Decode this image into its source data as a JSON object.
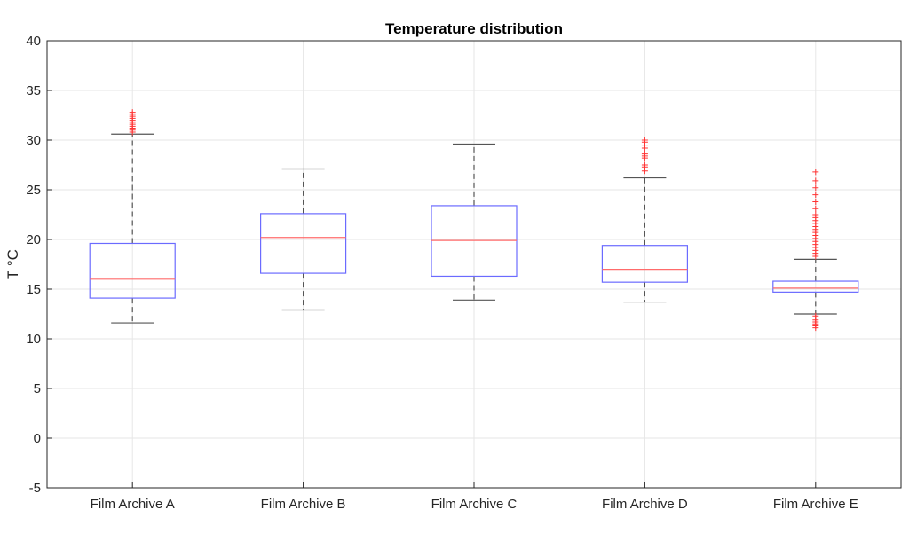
{
  "chart_data": {
    "type": "box",
    "title": "Temperature distribution",
    "xlabel": "",
    "ylabel": "T °C",
    "ylim": [
      -5,
      40
    ],
    "yticks": [
      -5,
      0,
      5,
      10,
      15,
      20,
      25,
      30,
      35,
      40
    ],
    "grid": true,
    "colors": {
      "box": "#6b6bff",
      "median": "#ff6b6b",
      "whisker": "#555555",
      "outlier": "#ff3333",
      "grid": "#e6e6e6",
      "axis": "#262626"
    },
    "categories": [
      "Film Archive A",
      "Film Archive B",
      "Film Archive C",
      "Film Archive D",
      "Film Archive E"
    ],
    "boxes": [
      {
        "label": "Film Archive A",
        "whisker_low": 11.6,
        "q1": 14.1,
        "median": 16.0,
        "q3": 19.6,
        "whisker_high": 30.6,
        "outliers": [
          30.8,
          31.0,
          31.2,
          31.4,
          31.6,
          31.8,
          32.0,
          32.2,
          32.4,
          32.6,
          32.8
        ]
      },
      {
        "label": "Film Archive B",
        "whisker_low": 12.9,
        "q1": 16.6,
        "median": 20.2,
        "q3": 22.6,
        "whisker_high": 27.1,
        "outliers": []
      },
      {
        "label": "Film Archive C",
        "whisker_low": 13.9,
        "q1": 16.3,
        "median": 19.9,
        "q3": 23.4,
        "whisker_high": 29.6,
        "outliers": []
      },
      {
        "label": "Film Archive D",
        "whisker_low": 13.7,
        "q1": 15.7,
        "median": 17.0,
        "q3": 19.4,
        "whisker_high": 26.2,
        "outliers": [
          26.9,
          27.1,
          27.3,
          27.5,
          28.2,
          28.4,
          28.6,
          29.2,
          29.5,
          29.8,
          30.0
        ]
      },
      {
        "label": "Film Archive E",
        "whisker_low": 12.5,
        "q1": 14.7,
        "median": 15.1,
        "q3": 15.8,
        "whisker_high": 18.0,
        "outliers": [
          11.1,
          11.3,
          11.5,
          11.7,
          11.9,
          12.1,
          12.3,
          18.3,
          18.6,
          18.9,
          19.2,
          19.5,
          19.8,
          20.1,
          20.4,
          20.7,
          21.0,
          21.3,
          21.6,
          21.9,
          22.2,
          22.5,
          23.1,
          23.8,
          24.5,
          25.2,
          25.9,
          26.8
        ]
      }
    ]
  }
}
